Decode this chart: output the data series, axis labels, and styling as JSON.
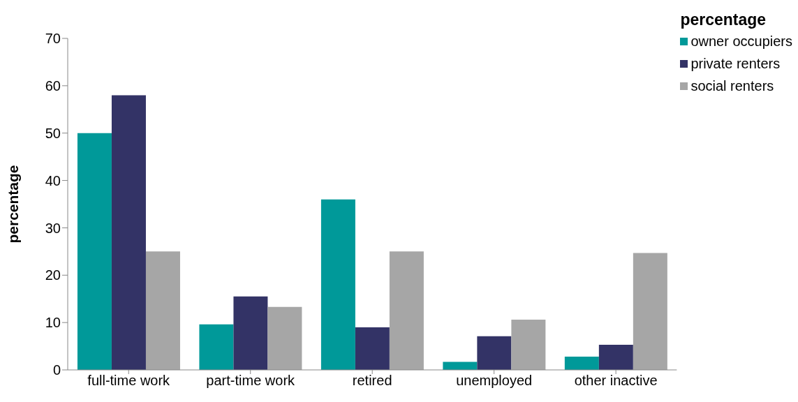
{
  "chart_data": {
    "type": "bar",
    "ylabel": "percentage",
    "legend_title": "percentage",
    "categories": [
      "full-time work",
      "part-time work",
      "retired",
      "unemployed",
      "other inactive"
    ],
    "series": [
      {
        "name": "owner occupiers",
        "color": "#009999",
        "values": [
          50,
          9.6,
          36,
          1.7,
          2.8
        ]
      },
      {
        "name": "private renters",
        "color": "#333366",
        "values": [
          58,
          15.5,
          9,
          7.1,
          5.3
        ]
      },
      {
        "name": "social renters",
        "color": "#a6a6a6",
        "values": [
          25,
          13.3,
          25,
          10.6,
          24.7
        ]
      }
    ],
    "ylim": [
      0,
      70
    ],
    "yticks": [
      0,
      10,
      20,
      30,
      40,
      50,
      60,
      70
    ],
    "grid": false,
    "legend": "top right"
  }
}
